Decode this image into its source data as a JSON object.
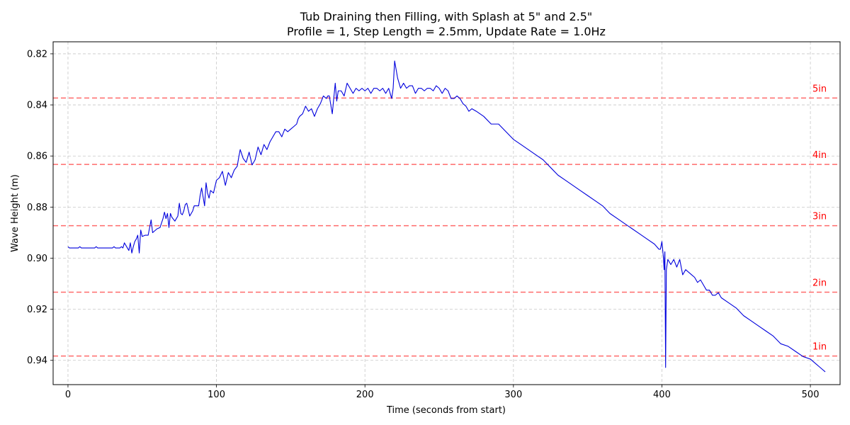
{
  "chart_data": {
    "type": "line",
    "title_line1": "Tub Draining then Filling, with Splash at 5\" and 2.5\"",
    "title_line2": "Profile = 1, Step Length = 2.5mm, Update Rate = 1.0Hz",
    "xlabel": "Time (seconds from start)",
    "ylabel": "Wave Height (m)",
    "xlim": [
      -10,
      520
    ],
    "ylim": [
      0.9495,
      0.8153
    ],
    "y_inverted": true,
    "grid": true,
    "xticks": [
      0,
      100,
      200,
      300,
      400,
      500
    ],
    "yticks": [
      0.82,
      0.84,
      0.86,
      0.88,
      0.9,
      0.92,
      0.94
    ],
    "ytick_labels": [
      "0.82",
      "0.84",
      "0.86",
      "0.88",
      "0.90",
      "0.92",
      "0.94"
    ],
    "series_color": "#0000dd",
    "reference_color": "#ff6b6b",
    "label_color": "#ff0000",
    "reference_lines": [
      {
        "label": "5in",
        "value": 0.8373
      },
      {
        "label": "4in",
        "value": 0.8633
      },
      {
        "label": "3in",
        "value": 0.8873
      },
      {
        "label": "2in",
        "value": 0.9133
      },
      {
        "label": "1in",
        "value": 0.9383
      }
    ],
    "series": [
      {
        "x": [
          0,
          1,
          2,
          3,
          4,
          5,
          6,
          7,
          8,
          9,
          10,
          12,
          15,
          18,
          19,
          20,
          22,
          25,
          28,
          30,
          31,
          32,
          35,
          36,
          37,
          38,
          40,
          41,
          42,
          43,
          44,
          45,
          46,
          47,
          48,
          49,
          50,
          52,
          54,
          55,
          56,
          57,
          58,
          60,
          62,
          64,
          65,
          66,
          67,
          68,
          69,
          70,
          72,
          74,
          75,
          76,
          77,
          78,
          79,
          80,
          82,
          84,
          85,
          86,
          88,
          89,
          90,
          92,
          93,
          94,
          95,
          96,
          98,
          100,
          102,
          104,
          106,
          108,
          110,
          112,
          114,
          115,
          116,
          118,
          120,
          122,
          124,
          126,
          128,
          130,
          132,
          134,
          136,
          138,
          140,
          142,
          144,
          146,
          148,
          150,
          152,
          154,
          155,
          156,
          158,
          160,
          162,
          164,
          166,
          168,
          170,
          172,
          174,
          175,
          176,
          178,
          180,
          181,
          182,
          184,
          186,
          188,
          190,
          192,
          194,
          196,
          198,
          200,
          202,
          204,
          206,
          208,
          210,
          212,
          214,
          216,
          218,
          219,
          220,
          222,
          224,
          226,
          228,
          230,
          232,
          234,
          236,
          238,
          240,
          242,
          244,
          246,
          248,
          250,
          252,
          254,
          256,
          258,
          260,
          262,
          264,
          266,
          268,
          270,
          272,
          275,
          280,
          285,
          290,
          295,
          300,
          305,
          310,
          315,
          320,
          325,
          330,
          335,
          340,
          345,
          350,
          355,
          360,
          365,
          370,
          375,
          380,
          385,
          390,
          395,
          398,
          399,
          400,
          401,
          401.5,
          402,
          402.5,
          403,
          404,
          406,
          408,
          410,
          412,
          414,
          416,
          418,
          420,
          422,
          424,
          426,
          428,
          430,
          432,
          434,
          436,
          438,
          440,
          445,
          450,
          455,
          460,
          465,
          470,
          475,
          480,
          485,
          490,
          495,
          500,
          502,
          504,
          506,
          508,
          510
        ],
        "y": [
          0.8955,
          0.896,
          0.896,
          0.896,
          0.896,
          0.896,
          0.896,
          0.896,
          0.8955,
          0.896,
          0.896,
          0.896,
          0.896,
          0.896,
          0.8955,
          0.896,
          0.896,
          0.896,
          0.896,
          0.896,
          0.8955,
          0.896,
          0.896,
          0.8955,
          0.896,
          0.894,
          0.896,
          0.897,
          0.894,
          0.898,
          0.8955,
          0.8935,
          0.8925,
          0.891,
          0.898,
          0.889,
          0.8915,
          0.891,
          0.891,
          0.888,
          0.885,
          0.89,
          0.8895,
          0.8885,
          0.888,
          0.8845,
          0.882,
          0.8845,
          0.8825,
          0.888,
          0.8825,
          0.884,
          0.8855,
          0.8835,
          0.8785,
          0.8825,
          0.883,
          0.8815,
          0.879,
          0.8785,
          0.8835,
          0.8815,
          0.8795,
          0.8795,
          0.8795,
          0.8755,
          0.8725,
          0.8795,
          0.8705,
          0.8745,
          0.8765,
          0.8735,
          0.8745,
          0.8695,
          0.8685,
          0.866,
          0.8715,
          0.8665,
          0.8685,
          0.8655,
          0.864,
          0.8605,
          0.8575,
          0.861,
          0.8625,
          0.8585,
          0.8635,
          0.8615,
          0.8565,
          0.8595,
          0.8555,
          0.8575,
          0.8545,
          0.8525,
          0.8505,
          0.8505,
          0.8525,
          0.8495,
          0.8505,
          0.8495,
          0.8485,
          0.8475,
          0.8455,
          0.8445,
          0.8435,
          0.8405,
          0.8425,
          0.8415,
          0.8445,
          0.8415,
          0.8395,
          0.8365,
          0.8375,
          0.8365,
          0.8365,
          0.8435,
          0.8315,
          0.8385,
          0.8345,
          0.8345,
          0.8365,
          0.8315,
          0.8335,
          0.8355,
          0.8335,
          0.8345,
          0.8335,
          0.8345,
          0.8335,
          0.8355,
          0.8335,
          0.8335,
          0.8345,
          0.8335,
          0.8355,
          0.8335,
          0.8375,
          0.8335,
          0.8228,
          0.8295,
          0.8335,
          0.8315,
          0.8335,
          0.8325,
          0.8325,
          0.8355,
          0.8335,
          0.8335,
          0.8345,
          0.8335,
          0.8335,
          0.8345,
          0.8325,
          0.8335,
          0.8355,
          0.8335,
          0.8345,
          0.8375,
          0.8375,
          0.8365,
          0.8375,
          0.8395,
          0.8405,
          0.8425,
          0.8415,
          0.8425,
          0.8445,
          0.8475,
          0.8475,
          0.8505,
          0.8535,
          0.8555,
          0.8575,
          0.8595,
          0.8615,
          0.8645,
          0.8675,
          0.8695,
          0.8715,
          0.8735,
          0.8755,
          0.8775,
          0.8795,
          0.8825,
          0.8845,
          0.8865,
          0.8885,
          0.8905,
          0.8925,
          0.8945,
          0.8965,
          0.8965,
          0.8935,
          0.8995,
          0.9045,
          0.8975,
          0.9428,
          0.9045,
          0.9005,
          0.9025,
          0.9005,
          0.9035,
          0.9005,
          0.9065,
          0.9045,
          0.9055,
          0.9065,
          0.9075,
          0.9095,
          0.9085,
          0.9105,
          0.9125,
          0.9125,
          0.9145,
          0.9145,
          0.9135,
          0.9155,
          0.9175,
          0.9195,
          0.9225,
          0.9245,
          0.9265,
          0.9285,
          0.9305,
          0.9335,
          0.9345,
          0.9365,
          0.9385,
          0.9395,
          0.9405,
          0.9415,
          0.9425,
          0.9435,
          0.9445
        ]
      }
    ]
  }
}
